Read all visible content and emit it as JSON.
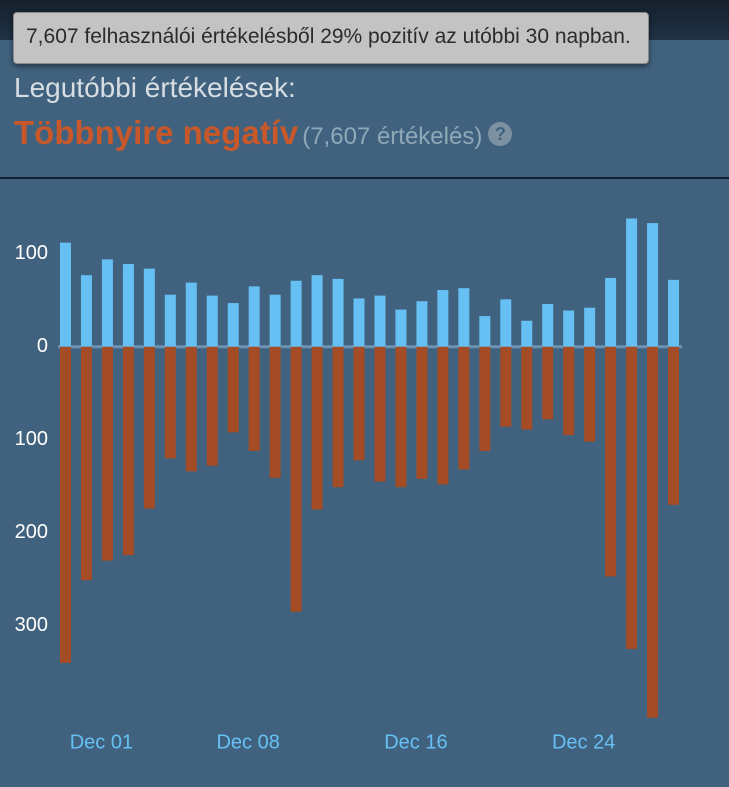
{
  "header": "Legutóbbi értékelések:",
  "summary": {
    "verdict": "Többnyire negatív",
    "count": "(7,607 értékelés)",
    "help": "?"
  },
  "tooltip": "7,607 felhasználói értékelésből 29% pozitív az utóbbi 30 napban.",
  "chart_data": {
    "type": "bar",
    "categories": [
      null,
      null,
      "Dec 01",
      null,
      null,
      null,
      null,
      null,
      null,
      "Dec 08",
      null,
      null,
      null,
      null,
      null,
      null,
      null,
      "Dec 16",
      null,
      null,
      null,
      null,
      null,
      null,
      null,
      "Dec 24",
      null,
      null,
      null,
      null
    ],
    "series": [
      {
        "color": "#66c0f4",
        "values": [
          112,
          77,
          94,
          89,
          84,
          56,
          69,
          55,
          47,
          65,
          56,
          71,
          77,
          73,
          52,
          55,
          40,
          49,
          61,
          63,
          33,
          51,
          28,
          46,
          39,
          42,
          74,
          138,
          133,
          72
        ]
      },
      {
        "color": "#a34c25",
        "values": [
          -340,
          -251,
          -230,
          -224,
          -174,
          -120,
          -134,
          -128,
          -92,
          -112,
          -141,
          -285,
          -175,
          -151,
          -122,
          -145,
          -151,
          -142,
          -148,
          -132,
          -112,
          -86,
          -89,
          -78,
          -95,
          -102,
          -247,
          -325,
          -399,
          -170
        ]
      }
    ],
    "ylim": [
      -410,
      160
    ],
    "yticks": [
      100,
      0,
      {
        "value": -100,
        "label": "100"
      },
      {
        "value": -200,
        "label": "200"
      },
      {
        "value": -300,
        "label": "300"
      }
    ]
  }
}
